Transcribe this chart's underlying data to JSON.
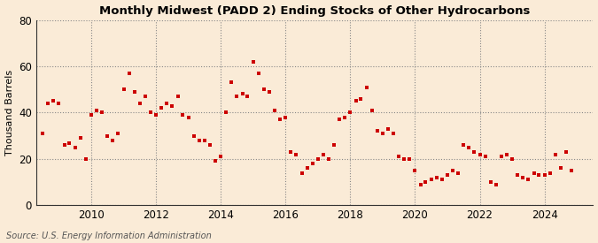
{
  "title": "Monthly Midwest (PADD 2) Ending Stocks of Other Hydrocarbons",
  "ylabel": "Thousand Barrels",
  "source": "Source: U.S. Energy Information Administration",
  "background_color": "#faebd7",
  "marker_color": "#cc0000",
  "xlim": [
    2008.3,
    2025.5
  ],
  "ylim": [
    0,
    80
  ],
  "yticks": [
    0,
    20,
    40,
    60,
    80
  ],
  "xticks": [
    2010,
    2012,
    2014,
    2016,
    2018,
    2020,
    2022,
    2024
  ],
  "data": [
    [
      2008.5,
      31
    ],
    [
      2008.67,
      44
    ],
    [
      2008.83,
      45
    ],
    [
      2009.0,
      44
    ],
    [
      2009.17,
      26
    ],
    [
      2009.33,
      27
    ],
    [
      2009.5,
      25
    ],
    [
      2009.67,
      29
    ],
    [
      2009.83,
      20
    ],
    [
      2010.0,
      39
    ],
    [
      2010.17,
      41
    ],
    [
      2010.33,
      40
    ],
    [
      2010.5,
      30
    ],
    [
      2010.67,
      28
    ],
    [
      2010.83,
      31
    ],
    [
      2011.0,
      50
    ],
    [
      2011.17,
      57
    ],
    [
      2011.33,
      49
    ],
    [
      2011.5,
      44
    ],
    [
      2011.67,
      47
    ],
    [
      2011.83,
      40
    ],
    [
      2012.0,
      39
    ],
    [
      2012.17,
      42
    ],
    [
      2012.33,
      44
    ],
    [
      2012.5,
      43
    ],
    [
      2012.67,
      47
    ],
    [
      2012.83,
      39
    ],
    [
      2013.0,
      38
    ],
    [
      2013.17,
      30
    ],
    [
      2013.33,
      28
    ],
    [
      2013.5,
      28
    ],
    [
      2013.67,
      26
    ],
    [
      2013.83,
      19
    ],
    [
      2014.0,
      21
    ],
    [
      2014.17,
      40
    ],
    [
      2014.33,
      53
    ],
    [
      2014.5,
      47
    ],
    [
      2014.67,
      48
    ],
    [
      2014.83,
      47
    ],
    [
      2015.0,
      62
    ],
    [
      2015.17,
      57
    ],
    [
      2015.33,
      50
    ],
    [
      2015.5,
      49
    ],
    [
      2015.67,
      41
    ],
    [
      2015.83,
      37
    ],
    [
      2016.0,
      38
    ],
    [
      2016.17,
      23
    ],
    [
      2016.33,
      22
    ],
    [
      2016.5,
      14
    ],
    [
      2016.67,
      16
    ],
    [
      2016.83,
      18
    ],
    [
      2017.0,
      20
    ],
    [
      2017.17,
      22
    ],
    [
      2017.33,
      20
    ],
    [
      2017.5,
      26
    ],
    [
      2017.67,
      37
    ],
    [
      2017.83,
      38
    ],
    [
      2018.0,
      40
    ],
    [
      2018.17,
      45
    ],
    [
      2018.33,
      46
    ],
    [
      2018.5,
      51
    ],
    [
      2018.67,
      41
    ],
    [
      2018.83,
      32
    ],
    [
      2019.0,
      31
    ],
    [
      2019.17,
      33
    ],
    [
      2019.33,
      31
    ],
    [
      2019.5,
      21
    ],
    [
      2019.67,
      20
    ],
    [
      2019.83,
      20
    ],
    [
      2020.0,
      15
    ],
    [
      2020.17,
      9
    ],
    [
      2020.33,
      10
    ],
    [
      2020.5,
      11
    ],
    [
      2020.67,
      12
    ],
    [
      2020.83,
      11
    ],
    [
      2021.0,
      13
    ],
    [
      2021.17,
      15
    ],
    [
      2021.33,
      14
    ],
    [
      2021.5,
      26
    ],
    [
      2021.67,
      25
    ],
    [
      2021.83,
      23
    ],
    [
      2022.0,
      22
    ],
    [
      2022.17,
      21
    ],
    [
      2022.33,
      10
    ],
    [
      2022.5,
      9
    ],
    [
      2022.67,
      21
    ],
    [
      2022.83,
      22
    ],
    [
      2023.0,
      20
    ],
    [
      2023.17,
      13
    ],
    [
      2023.33,
      12
    ],
    [
      2023.5,
      11
    ],
    [
      2023.67,
      14
    ],
    [
      2023.83,
      13
    ],
    [
      2024.0,
      13
    ],
    [
      2024.17,
      14
    ],
    [
      2024.33,
      22
    ],
    [
      2024.5,
      16
    ],
    [
      2024.67,
      23
    ],
    [
      2024.83,
      15
    ]
  ]
}
